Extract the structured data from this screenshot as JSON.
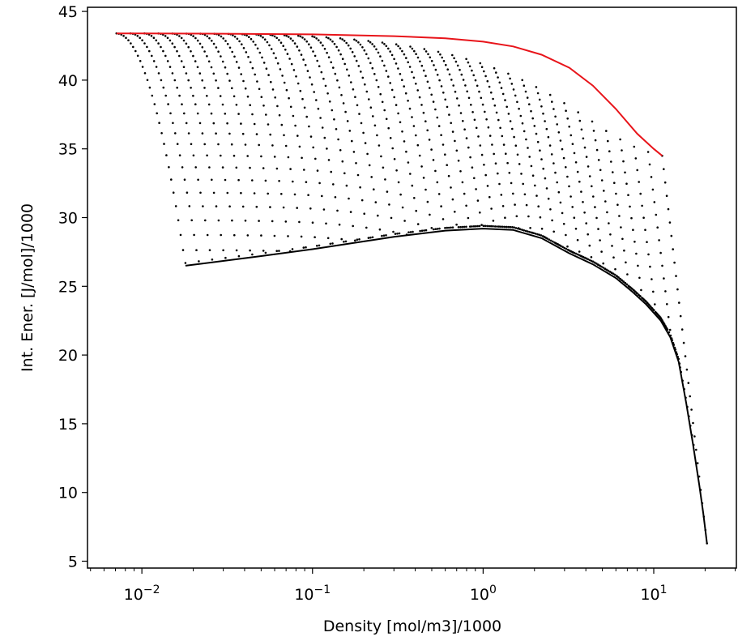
{
  "chart_data": {
    "type": "scatter",
    "title": "",
    "xlabel": "Density [mol/m3]/1000",
    "ylabel": "Int. Ener. [J/mol]/1000",
    "xscale": "log",
    "xlim": [
      0.0048,
      30.5
    ],
    "ylim": [
      4.5,
      45.3
    ],
    "grid": false,
    "legend": "none",
    "x_ticks": [
      {
        "value": 0.01,
        "base": "10",
        "exp": "−2"
      },
      {
        "value": 0.1,
        "base": "10",
        "exp": "−1"
      },
      {
        "value": 1,
        "base": "10",
        "exp": "0"
      },
      {
        "value": 10,
        "base": "10",
        "exp": "1"
      }
    ],
    "y_ticks": [
      {
        "value": 5,
        "label": "5"
      },
      {
        "value": 10,
        "label": "10"
      },
      {
        "value": 15,
        "label": "15"
      },
      {
        "value": 20,
        "label": "20"
      },
      {
        "value": 25,
        "label": "25"
      },
      {
        "value": 30,
        "label": "30"
      },
      {
        "value": 35,
        "label": "35"
      },
      {
        "value": 40,
        "label": "40"
      },
      {
        "value": 45,
        "label": "45"
      }
    ],
    "colors": {
      "upper_curve": "#e8141a",
      "lower_curve": "#000000",
      "points": "#000000"
    },
    "series": [
      {
        "type": "line",
        "color": "#e8141a",
        "points": [
          [
            0.0071,
            43.4
          ],
          [
            0.01,
            43.4
          ],
          [
            0.03,
            43.38
          ],
          [
            0.1,
            43.33
          ],
          [
            0.3,
            43.2
          ],
          [
            0.6,
            43.05
          ],
          [
            1.0,
            42.8
          ],
          [
            1.5,
            42.45
          ],
          [
            2.2,
            41.85
          ],
          [
            3.2,
            40.9
          ],
          [
            4.4,
            39.6
          ],
          [
            6.0,
            37.9
          ],
          [
            8.0,
            36.1
          ],
          [
            10.0,
            35.0
          ],
          [
            11.2,
            34.5
          ]
        ]
      },
      {
        "type": "line",
        "color": "#000000",
        "points": [
          [
            0.018,
            26.5
          ],
          [
            0.05,
            27.2
          ],
          [
            0.1,
            27.7
          ],
          [
            0.3,
            28.6
          ],
          [
            0.6,
            29.05
          ],
          [
            1.0,
            29.2
          ],
          [
            1.5,
            29.1
          ],
          [
            2.2,
            28.5
          ],
          [
            3.2,
            27.4
          ],
          [
            4.4,
            26.6
          ],
          [
            6.0,
            25.6
          ],
          [
            7.5,
            24.6
          ],
          [
            9.0,
            23.7
          ],
          [
            11.0,
            22.5
          ],
          [
            12.5,
            21.3
          ],
          [
            14.0,
            19.5
          ],
          [
            15.5,
            16.5
          ],
          [
            17.0,
            13.5
          ],
          [
            18.5,
            10.5
          ],
          [
            19.5,
            8.5
          ],
          [
            20.5,
            6.3
          ]
        ]
      },
      {
        "type": "scatter",
        "color": "#000000",
        "isotherms": 30,
        "x_left_start": 0.0071,
        "x_left_end": 0.018,
        "x_right_start": 11.2,
        "x_right_end": 20.5,
        "u_top_start": 43.4,
        "u_top_end": 34.5,
        "u_bottom_start": 26.5,
        "u_bottom_end": 6.3,
        "pressure_levels": 40
      }
    ]
  }
}
